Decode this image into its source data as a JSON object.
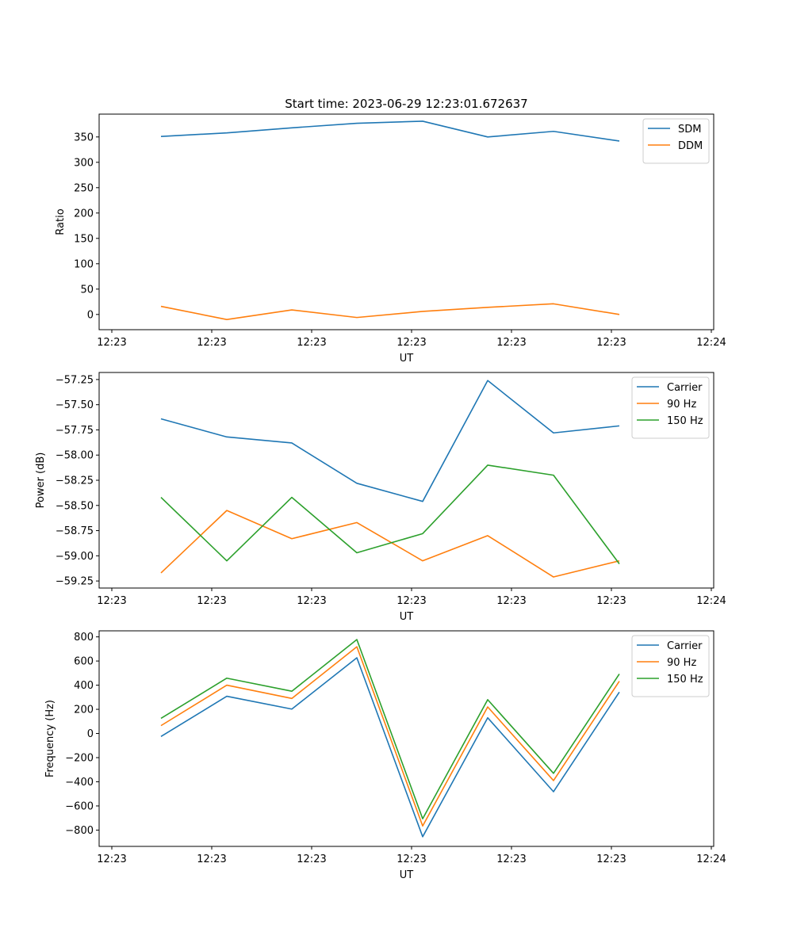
{
  "figure_title": "Start time: 2023-06-29 12:23:01.672637",
  "chart_data": [
    {
      "type": "line",
      "title": "Start time: 2023-06-29 12:23:01.672637",
      "xlabel": "UT",
      "ylabel": "Ratio",
      "x_tick_labels": [
        "12:23",
        "12:23",
        "12:23",
        "12:23",
        "12:23",
        "12:23",
        "12:24"
      ],
      "ylim": [
        -30,
        395
      ],
      "y_ticks": [
        0,
        50,
        100,
        150,
        200,
        250,
        300,
        350
      ],
      "y_tick_labels": [
        "0",
        "50",
        "100",
        "150",
        "200",
        "250",
        "300",
        "350"
      ],
      "grid": false,
      "legend": "top-right",
      "series": [
        {
          "name": "SDM",
          "color": "#1f77b4",
          "values": [
            351,
            358,
            368,
            377,
            381,
            350,
            361,
            342
          ]
        },
        {
          "name": "DDM",
          "color": "#ff7f0e",
          "values": [
            16,
            -10,
            9,
            -6,
            6,
            14,
            21,
            0
          ]
        }
      ]
    },
    {
      "type": "line",
      "xlabel": "UT",
      "ylabel": "Power (dB)",
      "x_tick_labels": [
        "12:23",
        "12:23",
        "12:23",
        "12:23",
        "12:23",
        "12:23",
        "12:24"
      ],
      "ylim": [
        -59.32,
        -57.18
      ],
      "y_ticks": [
        -59.25,
        -59.0,
        -58.75,
        -58.5,
        -58.25,
        -58.0,
        -57.75,
        -57.5,
        -57.25
      ],
      "y_tick_labels": [
        "−59.25",
        "−59.00",
        "−58.75",
        "−58.50",
        "−58.25",
        "−58.00",
        "−57.75",
        "−57.50",
        "−57.25"
      ],
      "grid": false,
      "legend": "top-right",
      "series": [
        {
          "name": "Carrier",
          "color": "#1f77b4",
          "values": [
            -57.64,
            -57.82,
            -57.88,
            -58.28,
            -58.46,
            -57.26,
            -57.78,
            -57.71
          ]
        },
        {
          "name": "90 Hz",
          "color": "#ff7f0e",
          "values": [
            -59.17,
            -58.55,
            -58.83,
            -58.67,
            -59.05,
            -58.8,
            -59.21,
            -59.05
          ]
        },
        {
          "name": "150 Hz",
          "color": "#2ca02c",
          "values": [
            -58.42,
            -59.05,
            -58.42,
            -58.97,
            -58.78,
            -58.1,
            -58.2,
            -59.08
          ]
        }
      ]
    },
    {
      "type": "line",
      "xlabel": "UT",
      "ylabel": "Frequency (Hz)",
      "x_tick_labels": [
        "12:23",
        "12:23",
        "12:23",
        "12:23",
        "12:23",
        "12:23",
        "12:24"
      ],
      "ylim": [
        -935,
        850
      ],
      "y_ticks": [
        -800,
        -600,
        -400,
        -200,
        0,
        200,
        400,
        600,
        800
      ],
      "y_tick_labels": [
        "−800",
        "−600",
        "−400",
        "−200",
        "0",
        "200",
        "400",
        "600",
        "800"
      ],
      "grid": false,
      "legend": "top-right",
      "series": [
        {
          "name": "Carrier",
          "color": "#1f77b4",
          "values": [
            -25,
            308,
            202,
            627,
            -855,
            130,
            -482,
            343
          ]
        },
        {
          "name": "90 Hz",
          "color": "#ff7f0e",
          "values": [
            65,
            400,
            290,
            718,
            -766,
            220,
            -390,
            433
          ]
        },
        {
          "name": "150 Hz",
          "color": "#2ca02c",
          "values": [
            125,
            458,
            350,
            778,
            -706,
            280,
            -330,
            493
          ]
        }
      ]
    }
  ]
}
